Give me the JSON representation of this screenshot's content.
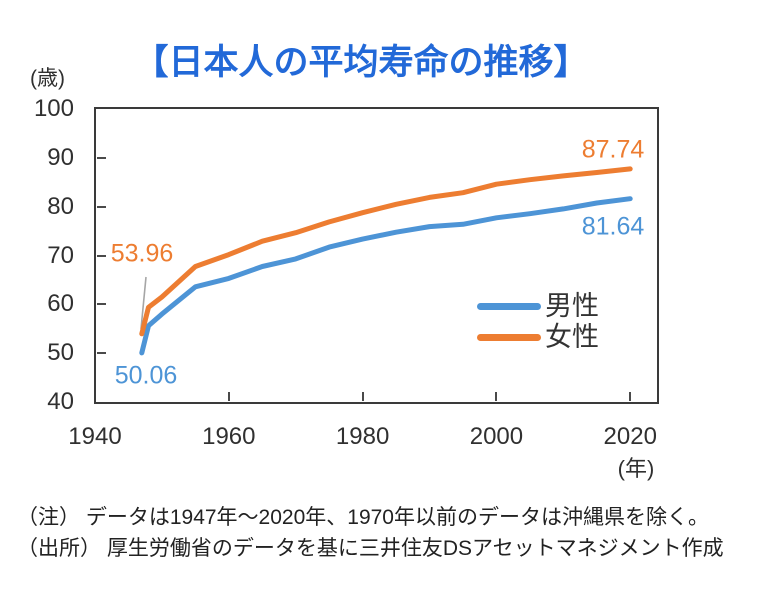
{
  "header": {
    "title": "【日本人の平均寿命の推移】"
  },
  "axes": {
    "y_unit": "(歳)",
    "x_unit": "(年)",
    "y_ticks": [
      100,
      90,
      80,
      70,
      60,
      50,
      40
    ],
    "x_ticks": [
      1940,
      1960,
      1980,
      2000,
      2020
    ]
  },
  "legend": {
    "items": [
      {
        "label": "男性",
        "color": "#4D94D6"
      },
      {
        "label": "女性",
        "color": "#ED7D31"
      }
    ]
  },
  "annotations": {
    "female_start": "53.96",
    "male_start": "50.06",
    "female_end": "87.74",
    "male_end": "81.64"
  },
  "notes": {
    "line1": "（注） データは1947年～2020年、1970年以前のデータは沖縄県を除く。",
    "line2": "（出所） 厚生労働省のデータを基に三井住友DSアセットマネジメント作成"
  },
  "colors": {
    "title": "#2269D8",
    "male": "#4D94D6",
    "female": "#ED7D31",
    "axis_border": "#3A3A3A",
    "tick": "#4A4A4A",
    "axis_text": "#303030",
    "note_text": "#222222",
    "leader_line": "#A6A6A6"
  },
  "chart_data": {
    "type": "line",
    "title": "【日本人の平均寿命の推移】",
    "xlabel": "(年)",
    "ylabel": "(歳)",
    "xlim": [
      1940,
      2024
    ],
    "ylim": [
      40,
      100
    ],
    "grid": false,
    "legend_position": "inside-right",
    "x": [
      1947,
      1948,
      1950,
      1955,
      1960,
      1965,
      1970,
      1975,
      1980,
      1985,
      1990,
      1995,
      2000,
      2005,
      2010,
      2015,
      2020
    ],
    "series": [
      {
        "name": "男性",
        "color": "#4D94D6",
        "values": [
          50.06,
          55.6,
          58.0,
          63.6,
          65.32,
          67.74,
          69.31,
          71.73,
          73.35,
          74.78,
          75.92,
          76.38,
          77.72,
          78.56,
          79.55,
          80.75,
          81.64
        ]
      },
      {
        "name": "女性",
        "color": "#ED7D31",
        "values": [
          53.96,
          59.4,
          61.5,
          67.75,
          70.19,
          72.92,
          74.66,
          76.89,
          78.76,
          80.48,
          81.9,
          82.85,
          84.6,
          85.52,
          86.3,
          86.99,
          87.74
        ]
      }
    ],
    "start_labels": {
      "男性": 50.06,
      "女性": 53.96
    },
    "end_labels": {
      "男性": 81.64,
      "女性": 87.74
    }
  }
}
